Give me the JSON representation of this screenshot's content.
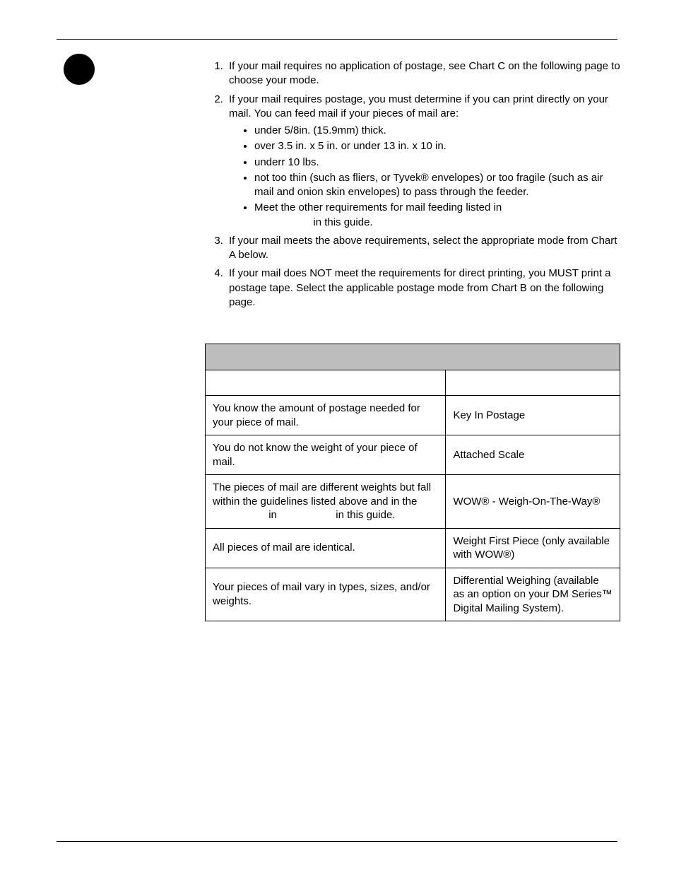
{
  "list": {
    "item1": "If your mail requires no application of postage, see Chart C on the following page to choose your mode.",
    "item2_lead": "If your mail requires postage, you must determine if you can print directly on your mail. You can feed mail if your pieces of mail are:",
    "item2_bullets": {
      "b1": "under 5/8in. (15.9mm) thick.",
      "b2": "over 3.5 in. x 5 in. or under 13 in. x 10 in.",
      "b3": "underr 10 lbs.",
      "b4": "not too thin (such as fliers, or Tyvek® envelopes) or too fragile (such as air mail and onion skin envelopes) to pass through the feeder.",
      "b5_a": "Meet the other requirements for mail feeding listed in",
      "b5_b": "in this guide."
    },
    "item3": "If your mail meets the above requirements, select the appropriate mode from Chart A below.",
    "item4": "If your mail does NOT meet the requirements for direct printing, you MUST print a postage tape. Select the applicable postage mode from Chart B on the following page."
  },
  "chartA": {
    "title": "",
    "col1_header": "",
    "col2_header": "",
    "rows": {
      "r1c1": "You know the amount of postage needed for your piece of mail.",
      "r1c2": "Key In Postage",
      "r2c1": "You do not know the weight of your piece of mail.",
      "r2c2": "Attached Scale",
      "r3c1_a": "The pieces of mail are different weights but fall within the guidelines listed above and in the",
      "r3c1_b": "in",
      "r3c1_c": "in this guide.",
      "r3c2": "WOW® - Weigh-On-The-Way®",
      "r4c1": "All pieces of mail are identical.",
      "r4c2": "Weight First Piece (only available with WOW®)",
      "r5c1": "Your pieces of mail vary in types, sizes, and/or weights.",
      "r5c2": "Differential Weighing (available as an option  on your DM Series™ Digital Mailing System)."
    }
  }
}
